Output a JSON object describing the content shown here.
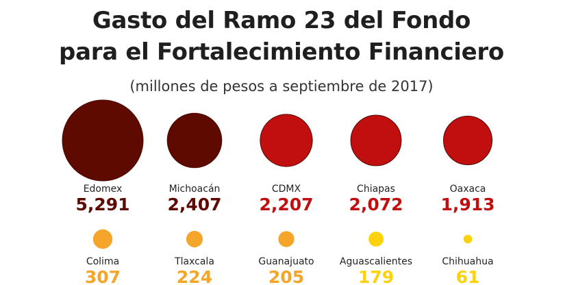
{
  "chart_data": {
    "type": "bubble",
    "title": "Gasto del Ramo 23 del Fondo",
    "title_line2": "para el Fortalecimiento Financiero",
    "subtitle": "(millones de pesos a septiembre de 2017)",
    "rows": [
      {
        "items": [
          {
            "label": "Edomex",
            "value": 5291,
            "display": "5,291",
            "color": "#5f0a00"
          },
          {
            "label": "Michoacán",
            "value": 2407,
            "display": "2,407",
            "color": "#5f0a00"
          },
          {
            "label": "CDMX",
            "value": 2207,
            "display": "2,207",
            "color": "#c10f0f"
          },
          {
            "label": "Chiapas",
            "value": 2072,
            "display": "2,072",
            "color": "#c10f0f"
          },
          {
            "label": "Oaxaca",
            "value": 1913,
            "display": "1,913",
            "color": "#c10f0f"
          }
        ]
      },
      {
        "items": [
          {
            "label": "Colima",
            "value": 307,
            "display": "307",
            "color": "#f4a52a"
          },
          {
            "label": "Tlaxcala",
            "value": 224,
            "display": "224",
            "color": "#f4a52a"
          },
          {
            "label": "Guanajuato",
            "value": 205,
            "display": "205",
            "color": "#f4a52a"
          },
          {
            "label": "Aguascalientes",
            "value": 179,
            "display": "179",
            "color": "#fdd20b"
          },
          {
            "label": "Chihuahua",
            "value": 61,
            "display": "61",
            "color": "#fdd20b"
          }
        ]
      }
    ]
  }
}
